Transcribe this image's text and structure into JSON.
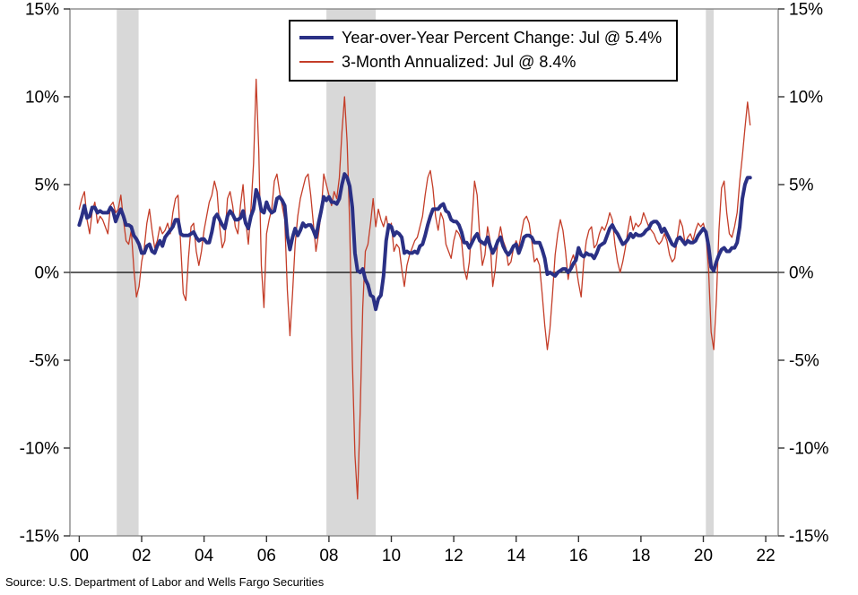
{
  "source_note": "Source: U.S. Department of Labor and Wells Fargo Securities",
  "legend": {
    "yoy_label": "Year-over-Year Percent Change: Jul @ 5.4%",
    "threemo_label": "3-Month Annualized: Jul @ 8.4%"
  },
  "chart_data": {
    "type": "line",
    "x_domain": [
      1999.7,
      2022.4
    ],
    "y_domain": [
      -15,
      15
    ],
    "grid": false,
    "legend_position": "top-center",
    "y_ticks": [
      {
        "value": 15,
        "label": "15%"
      },
      {
        "value": 10,
        "label": "10%"
      },
      {
        "value": 5,
        "label": "5%"
      },
      {
        "value": 0,
        "label": "0%"
      },
      {
        "value": -5,
        "label": "-5%"
      },
      {
        "value": -10,
        "label": "-10%"
      },
      {
        "value": -15,
        "label": "-15%"
      }
    ],
    "x_ticks": [
      {
        "value": 2000,
        "label": "00"
      },
      {
        "value": 2002,
        "label": "02"
      },
      {
        "value": 2004,
        "label": "04"
      },
      {
        "value": 2006,
        "label": "06"
      },
      {
        "value": 2008,
        "label": "08"
      },
      {
        "value": 2010,
        "label": "10"
      },
      {
        "value": 2012,
        "label": "12"
      },
      {
        "value": 2014,
        "label": "14"
      },
      {
        "value": 2016,
        "label": "16"
      },
      {
        "value": 2018,
        "label": "18"
      },
      {
        "value": 2020,
        "label": "20"
      },
      {
        "value": 2022,
        "label": "22"
      }
    ],
    "colors": {
      "yoy": "#2a3085",
      "threemo": "#c43d28",
      "recession_band": "#d8d8d8",
      "zero_line": "#000000",
      "frame": "#888888",
      "tick": "#333333"
    },
    "recession_bands": [
      [
        2001.2,
        2001.9
      ],
      [
        2007.92,
        2009.5
      ],
      [
        2020.08,
        2020.33
      ]
    ],
    "series": [
      {
        "id": "threemo",
        "label": "3-Month Annualized: Jul @ 8.4%",
        "color": "#c43d28",
        "stroke_width": 1.3,
        "start_year": 2000,
        "monthly_values": [
          3.6,
          4.2,
          4.6,
          3.0,
          2.2,
          3.5,
          4.0,
          2.8,
          3.2,
          3.0,
          2.6,
          2.2,
          3.8,
          4.0,
          3.4,
          3.6,
          4.4,
          3.0,
          1.8,
          1.6,
          2.4,
          0.2,
          -1.4,
          -0.8,
          0.6,
          1.4,
          2.8,
          3.6,
          2.4,
          1.4,
          1.8,
          2.6,
          2.2,
          2.4,
          2.8,
          2.2,
          3.4,
          4.2,
          4.4,
          1.6,
          -1.2,
          -1.6,
          0.8,
          2.6,
          2.8,
          1.2,
          0.4,
          1.2,
          2.4,
          3.2,
          4.0,
          4.4,
          5.2,
          4.6,
          2.6,
          1.4,
          1.8,
          4.2,
          4.6,
          3.8,
          2.6,
          2.2,
          3.8,
          5.0,
          3.0,
          1.6,
          3.6,
          6.2,
          11.0,
          7.0,
          0.4,
          -2.0,
          2.2,
          3.0,
          3.6,
          5.2,
          5.6,
          4.6,
          3.8,
          3.0,
          -1.0,
          -3.6,
          -1.2,
          1.6,
          3.2,
          4.2,
          4.8,
          5.4,
          5.6,
          4.4,
          2.8,
          1.2,
          2.2,
          3.4,
          5.6,
          5.0,
          4.4,
          3.8,
          4.6,
          4.2,
          5.4,
          8.0,
          10.0,
          7.4,
          2.6,
          -5.0,
          -10.4,
          -12.9,
          -8.0,
          -2.0,
          1.2,
          1.6,
          2.8,
          4.2,
          2.6,
          3.6,
          3.0,
          2.6,
          3.2,
          2.4,
          2.8,
          1.2,
          1.6,
          1.4,
          0.2,
          -0.8,
          0.4,
          1.0,
          1.4,
          1.8,
          2.0,
          2.6,
          3.2,
          4.4,
          5.4,
          5.8,
          4.8,
          3.2,
          2.4,
          3.4,
          3.0,
          1.6,
          1.2,
          0.8,
          1.8,
          2.4,
          2.2,
          1.8,
          0.2,
          -0.4,
          0.6,
          2.8,
          5.2,
          4.4,
          2.0,
          0.4,
          1.0,
          2.6,
          1.8,
          -0.8,
          0.2,
          1.8,
          2.6,
          1.8,
          1.4,
          0.4,
          0.6,
          1.4,
          1.8,
          1.4,
          2.2,
          3.0,
          3.2,
          2.8,
          1.8,
          0.6,
          0.8,
          0.4,
          -1.2,
          -3.0,
          -4.4,
          -3.2,
          -1.2,
          1.0,
          2.2,
          3.0,
          2.4,
          1.2,
          -0.4,
          0.6,
          1.0,
          0.4,
          -0.6,
          -1.4,
          0.6,
          1.8,
          2.4,
          2.6,
          1.4,
          1.6,
          2.2,
          2.6,
          2.4,
          2.8,
          3.4,
          3.0,
          1.6,
          0.6,
          0.0,
          0.6,
          1.4,
          2.4,
          3.2,
          2.4,
          2.8,
          2.6,
          2.8,
          3.4,
          3.0,
          2.6,
          2.4,
          2.2,
          1.8,
          1.6,
          1.8,
          2.2,
          1.8,
          1.0,
          0.6,
          0.8,
          2.0,
          3.0,
          2.6,
          1.6,
          2.0,
          2.2,
          1.8,
          2.4,
          2.8,
          2.6,
          2.8,
          2.2,
          0.2,
          -3.4,
          -4.4,
          -1.6,
          2.4,
          4.8,
          5.2,
          3.4,
          2.2,
          2.0,
          2.6,
          3.4,
          5.2,
          6.6,
          8.2,
          9.7,
          8.4
        ]
      },
      {
        "id": "yoy",
        "label": "Year-over-Year Percent Change: Jul @ 5.4%",
        "color": "#2a3085",
        "stroke_width": 4,
        "start_year": 2000,
        "monthly_values": [
          2.7,
          3.2,
          3.8,
          3.1,
          3.2,
          3.7,
          3.7,
          3.4,
          3.5,
          3.4,
          3.4,
          3.4,
          3.7,
          3.5,
          2.9,
          3.3,
          3.6,
          3.2,
          2.7,
          2.7,
          2.6,
          2.1,
          1.9,
          1.6,
          1.1,
          1.1,
          1.5,
          1.6,
          1.2,
          1.1,
          1.5,
          1.8,
          1.5,
          2.0,
          2.2,
          2.4,
          2.6,
          3.0,
          3.0,
          2.2,
          2.1,
          2.1,
          2.1,
          2.2,
          2.3,
          2.0,
          1.8,
          1.9,
          1.9,
          1.7,
          1.7,
          2.3,
          3.1,
          3.3,
          3.0,
          2.7,
          2.5,
          3.2,
          3.5,
          3.3,
          3.0,
          3.0,
          3.1,
          3.5,
          2.8,
          2.5,
          3.2,
          3.6,
          4.7,
          4.3,
          3.5,
          3.4,
          4.0,
          3.6,
          3.4,
          3.5,
          4.2,
          4.3,
          4.1,
          3.8,
          2.1,
          1.3,
          2.0,
          2.5,
          2.1,
          2.4,
          2.8,
          2.6,
          2.7,
          2.7,
          2.4,
          2.0,
          2.8,
          3.5,
          4.3,
          4.1,
          4.3,
          4.0,
          4.0,
          3.9,
          4.2,
          5.0,
          5.6,
          5.4,
          4.9,
          3.7,
          1.1,
          0.1,
          0.0,
          0.2,
          -0.4,
          -0.7,
          -1.3,
          -1.4,
          -2.1,
          -1.5,
          -1.3,
          -0.2,
          1.8,
          2.7,
          2.6,
          2.1,
          2.3,
          2.2,
          2.0,
          1.1,
          1.2,
          1.1,
          1.1,
          1.2,
          1.1,
          1.5,
          1.6,
          2.1,
          2.7,
          3.2,
          3.6,
          3.6,
          3.6,
          3.8,
          3.9,
          3.5,
          3.4,
          3.0,
          2.9,
          2.9,
          2.7,
          2.3,
          1.7,
          1.7,
          1.4,
          1.7,
          2.0,
          2.2,
          1.8,
          1.7,
          1.6,
          2.0,
          1.5,
          1.1,
          1.4,
          1.8,
          2.0,
          1.5,
          1.2,
          1.0,
          1.2,
          1.5,
          1.6,
          1.1,
          1.5,
          2.0,
          2.1,
          2.1,
          2.0,
          1.7,
          1.7,
          1.7,
          1.3,
          0.8,
          -0.1,
          0.0,
          -0.1,
          -0.2,
          0.0,
          0.1,
          0.2,
          0.2,
          0.0,
          0.2,
          0.5,
          0.7,
          1.4,
          1.0,
          0.9,
          1.1,
          1.0,
          1.0,
          0.8,
          1.1,
          1.5,
          1.6,
          1.7,
          2.1,
          2.5,
          2.7,
          2.4,
          2.2,
          1.9,
          1.6,
          1.7,
          1.9,
          2.2,
          2.0,
          2.2,
          2.1,
          2.1,
          2.2,
          2.4,
          2.5,
          2.8,
          2.9,
          2.9,
          2.7,
          2.3,
          2.5,
          2.2,
          1.9,
          1.6,
          1.5,
          1.9,
          2.0,
          1.8,
          1.6,
          1.8,
          1.7,
          1.7,
          1.8,
          2.1,
          2.3,
          2.5,
          2.3,
          1.5,
          0.3,
          0.1,
          0.6,
          1.0,
          1.3,
          1.4,
          1.2,
          1.2,
          1.4,
          1.4,
          1.7,
          2.6,
          4.2,
          5.0,
          5.4,
          5.4
        ]
      }
    ]
  }
}
